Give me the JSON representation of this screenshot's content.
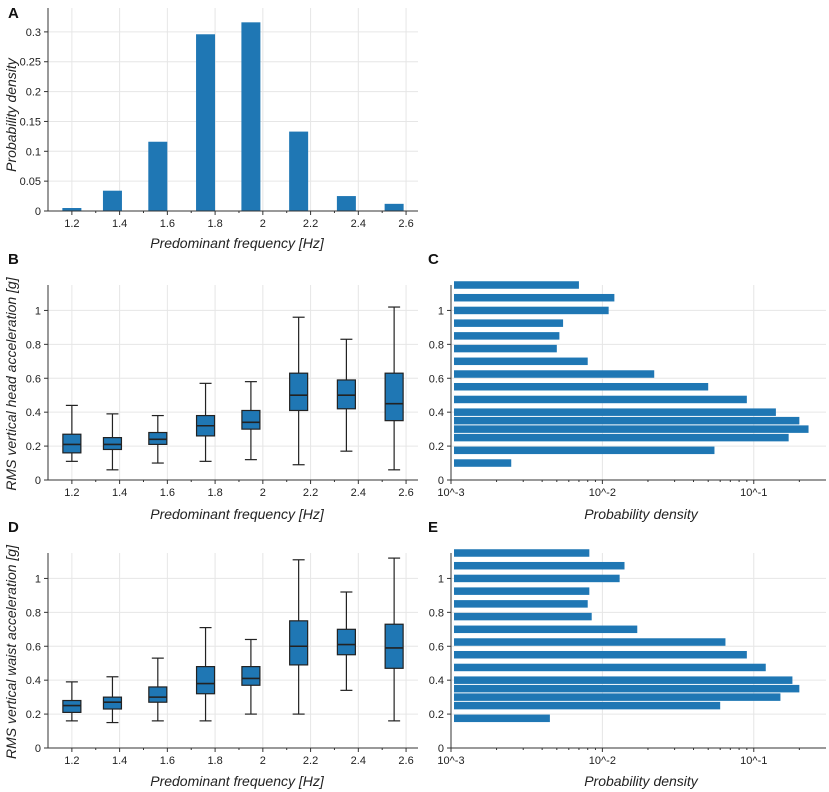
{
  "chart_data": [
    {
      "panel": "A",
      "type": "bar",
      "xlabel": "Predominant frequency [Hz]",
      "ylabel": "Probability density",
      "xlim": [
        1.1,
        2.65
      ],
      "ylim": [
        0,
        0.34
      ],
      "xticks": [
        "1.2",
        "1.4",
        "1.6",
        "1.8",
        "2",
        "2.2",
        "2.4",
        "2.6"
      ],
      "yticks": [
        "0",
        "0.05",
        "0.1",
        "0.15",
        "0.2",
        "0.25",
        "0.3"
      ],
      "x": [
        1.2,
        1.37,
        1.56,
        1.76,
        1.95,
        2.15,
        2.35,
        2.55
      ],
      "values": [
        0.005,
        0.034,
        0.116,
        0.296,
        0.316,
        0.133,
        0.025,
        0.012
      ]
    },
    {
      "panel": "B",
      "type": "box",
      "xlabel": "Predominant frequency [Hz]",
      "ylabel": "RMS vertical head acceleration [g]",
      "xlim": [
        1.1,
        2.65
      ],
      "ylim": [
        0,
        1.15
      ],
      "xticks": [
        "1.2",
        "1.4",
        "1.6",
        "1.8",
        "2",
        "2.2",
        "2.4",
        "2.6"
      ],
      "yticks": [
        "0",
        "0.2",
        "0.4",
        "0.6",
        "0.8",
        "1"
      ],
      "boxes": [
        {
          "x": 1.2,
          "min": 0.11,
          "q1": 0.16,
          "median": 0.21,
          "q3": 0.27,
          "max": 0.44
        },
        {
          "x": 1.37,
          "min": 0.06,
          "q1": 0.18,
          "median": 0.21,
          "q3": 0.25,
          "max": 0.39
        },
        {
          "x": 1.56,
          "min": 0.1,
          "q1": 0.21,
          "median": 0.24,
          "q3": 0.28,
          "max": 0.38
        },
        {
          "x": 1.76,
          "min": 0.11,
          "q1": 0.26,
          "median": 0.32,
          "q3": 0.38,
          "max": 0.57
        },
        {
          "x": 1.95,
          "min": 0.12,
          "q1": 0.3,
          "median": 0.34,
          "q3": 0.41,
          "max": 0.58
        },
        {
          "x": 2.15,
          "min": 0.09,
          "q1": 0.41,
          "median": 0.5,
          "q3": 0.63,
          "max": 0.96
        },
        {
          "x": 2.35,
          "min": 0.17,
          "q1": 0.42,
          "median": 0.5,
          "q3": 0.59,
          "max": 0.83
        },
        {
          "x": 2.55,
          "min": 0.06,
          "q1": 0.35,
          "median": 0.45,
          "q3": 0.63,
          "max": 1.02
        }
      ]
    },
    {
      "panel": "C",
      "type": "barh",
      "xscale": "log",
      "xlabel": "Probability density",
      "xlim": [
        0.001,
        0.3
      ],
      "ylim": [
        0,
        1.15
      ],
      "xticks": [
        "10^-3",
        "10^-2",
        "10^-1"
      ],
      "yticks": [
        "0",
        "0.2",
        "0.4",
        "0.6",
        "0.8",
        "1"
      ],
      "y": [
        0.1,
        0.175,
        0.25,
        0.3,
        0.35,
        0.4,
        0.475,
        0.55,
        0.625,
        0.7,
        0.775,
        0.85,
        0.925,
        1.0,
        1.075,
        1.15
      ],
      "values": [
        0.0025,
        0.055,
        0.17,
        0.23,
        0.2,
        0.14,
        0.09,
        0.05,
        0.022,
        0.008,
        0.005,
        0.0052,
        0.0055,
        0.011,
        0.012,
        0.007
      ]
    },
    {
      "panel": "D",
      "type": "box",
      "xlabel": "Predominant frequency [Hz]",
      "ylabel": "RMS vertical waist acceleration [g]",
      "xlim": [
        1.1,
        2.65
      ],
      "ylim": [
        0,
        1.15
      ],
      "xticks": [
        "1.2",
        "1.4",
        "1.6",
        "1.8",
        "2",
        "2.2",
        "2.4",
        "2.6"
      ],
      "yticks": [
        "0",
        "0.2",
        "0.4",
        "0.6",
        "0.8",
        "1"
      ],
      "boxes": [
        {
          "x": 1.2,
          "min": 0.16,
          "q1": 0.21,
          "median": 0.25,
          "q3": 0.28,
          "max": 0.39
        },
        {
          "x": 1.37,
          "min": 0.15,
          "q1": 0.23,
          "median": 0.27,
          "q3": 0.3,
          "max": 0.42
        },
        {
          "x": 1.56,
          "min": 0.16,
          "q1": 0.27,
          "median": 0.3,
          "q3": 0.36,
          "max": 0.53
        },
        {
          "x": 1.76,
          "min": 0.16,
          "q1": 0.32,
          "median": 0.38,
          "q3": 0.48,
          "max": 0.71
        },
        {
          "x": 1.95,
          "min": 0.2,
          "q1": 0.37,
          "median": 0.41,
          "q3": 0.48,
          "max": 0.64
        },
        {
          "x": 2.15,
          "min": 0.2,
          "q1": 0.49,
          "median": 0.6,
          "q3": 0.75,
          "max": 1.11
        },
        {
          "x": 2.35,
          "min": 0.34,
          "q1": 0.55,
          "median": 0.61,
          "q3": 0.7,
          "max": 0.92
        },
        {
          "x": 2.55,
          "min": 0.16,
          "q1": 0.47,
          "median": 0.59,
          "q3": 0.73,
          "max": 1.12
        }
      ]
    },
    {
      "panel": "E",
      "type": "barh",
      "xscale": "log",
      "xlabel": "Probability density",
      "xlim": [
        0.001,
        0.3
      ],
      "ylim": [
        0,
        1.15
      ],
      "xticks": [
        "10^-3",
        "10^-2",
        "10^-1"
      ],
      "yticks": [
        "0",
        "0.2",
        "0.4",
        "0.6",
        "0.8",
        "1"
      ],
      "y": [
        0.175,
        0.25,
        0.3,
        0.35,
        0.4,
        0.475,
        0.55,
        0.625,
        0.7,
        0.775,
        0.85,
        0.925,
        1.0,
        1.075,
        1.15
      ],
      "values": [
        0.0045,
        0.06,
        0.15,
        0.2,
        0.18,
        0.12,
        0.09,
        0.065,
        0.017,
        0.0085,
        0.008,
        0.0082,
        0.013,
        0.014,
        0.0082
      ]
    }
  ]
}
